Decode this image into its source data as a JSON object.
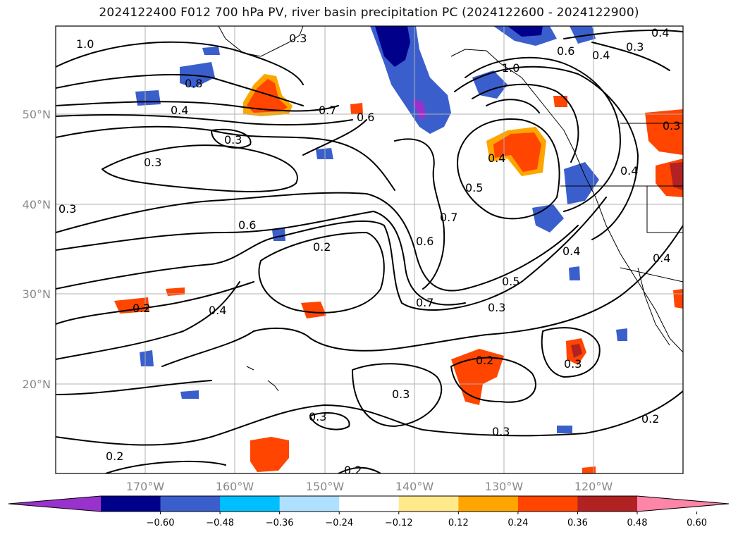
{
  "title": "2024122400 F012 700 hPa PV, river basin precipitation PC (2024122600 - 2024122900)",
  "lat_labels": [
    "50°N",
    "40°N",
    "30°N",
    "20°N"
  ],
  "lon_labels": [
    "170°W",
    "160°W",
    "150°W",
    "140°W",
    "130°W",
    "120°W"
  ],
  "contour_labels": [
    "1.0",
    "0.8",
    "0.4",
    "0.7",
    "0.3",
    "0.3",
    "0.6",
    "0.2",
    "0.4",
    "0.2",
    "0.3",
    "0.6",
    "0.5",
    "0.7",
    "0.6",
    "0.7",
    "0.5",
    "0.4",
    "0.3",
    "0.2",
    "0.3",
    "0.3",
    "0.3",
    "0.2",
    "0.2",
    "0.6",
    "0.4",
    "0.3",
    "1.0",
    "0.4",
    "0.4",
    "0.4",
    "0.4",
    "0.3",
    "0.2",
    "0.3",
    "0.3"
  ],
  "colorbar": {
    "ticks": [
      "−0.60",
      "−0.48",
      "−0.36",
      "−0.24",
      "−0.12",
      "0.12",
      "0.24",
      "0.36",
      "0.48",
      "0.60"
    ],
    "colors": [
      "#9932cc",
      "#00008b",
      "#3a5fcd",
      "#00bfff",
      "#b0e0ff",
      "#ffffff",
      "#ffe98a",
      "#ffa500",
      "#ff4500",
      "#b22222",
      "#ff85a8"
    ]
  },
  "colors": {
    "neg_strong": "#00008b",
    "neg_mid": "#3a5fcd",
    "neg_light": "#00bfff",
    "pos_light": "#ffa500",
    "pos_strong": "#ff4500",
    "pos_dark": "#b22222"
  }
}
